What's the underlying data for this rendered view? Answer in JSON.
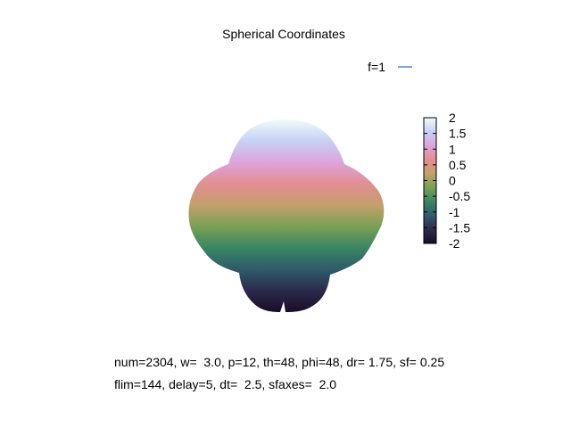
{
  "chart_data": {
    "type": "surface",
    "title": "Spherical Coordinates",
    "legend": {
      "label": "f=1",
      "color": "#1f6fbf",
      "placement": "top-right"
    },
    "colorbar": {
      "min": -2,
      "max": 2,
      "ticks": [
        "2",
        "1.5",
        "1",
        "0.5",
        "0",
        "-0.5",
        "-1",
        "-1.5",
        "-2"
      ],
      "colormap": [
        "#1b0c26",
        "#2b2a4c",
        "#2f5b6a",
        "#3a8564",
        "#7aa053",
        "#c4a06a",
        "#e28d93",
        "#dca4db",
        "#c6d2f5",
        "#f1fbf9"
      ]
    },
    "surface": {
      "shape": "spherical harmonic lobes",
      "value_range": [
        -2,
        2
      ]
    },
    "params": {
      "line1": "num=2304, w=  3.0, p=12, th=48, phi=48, dr= 1.75, sf= 0.25",
      "line2": "flim=144, delay=5, dt=  2.5, sfaxes=  2.0"
    }
  }
}
